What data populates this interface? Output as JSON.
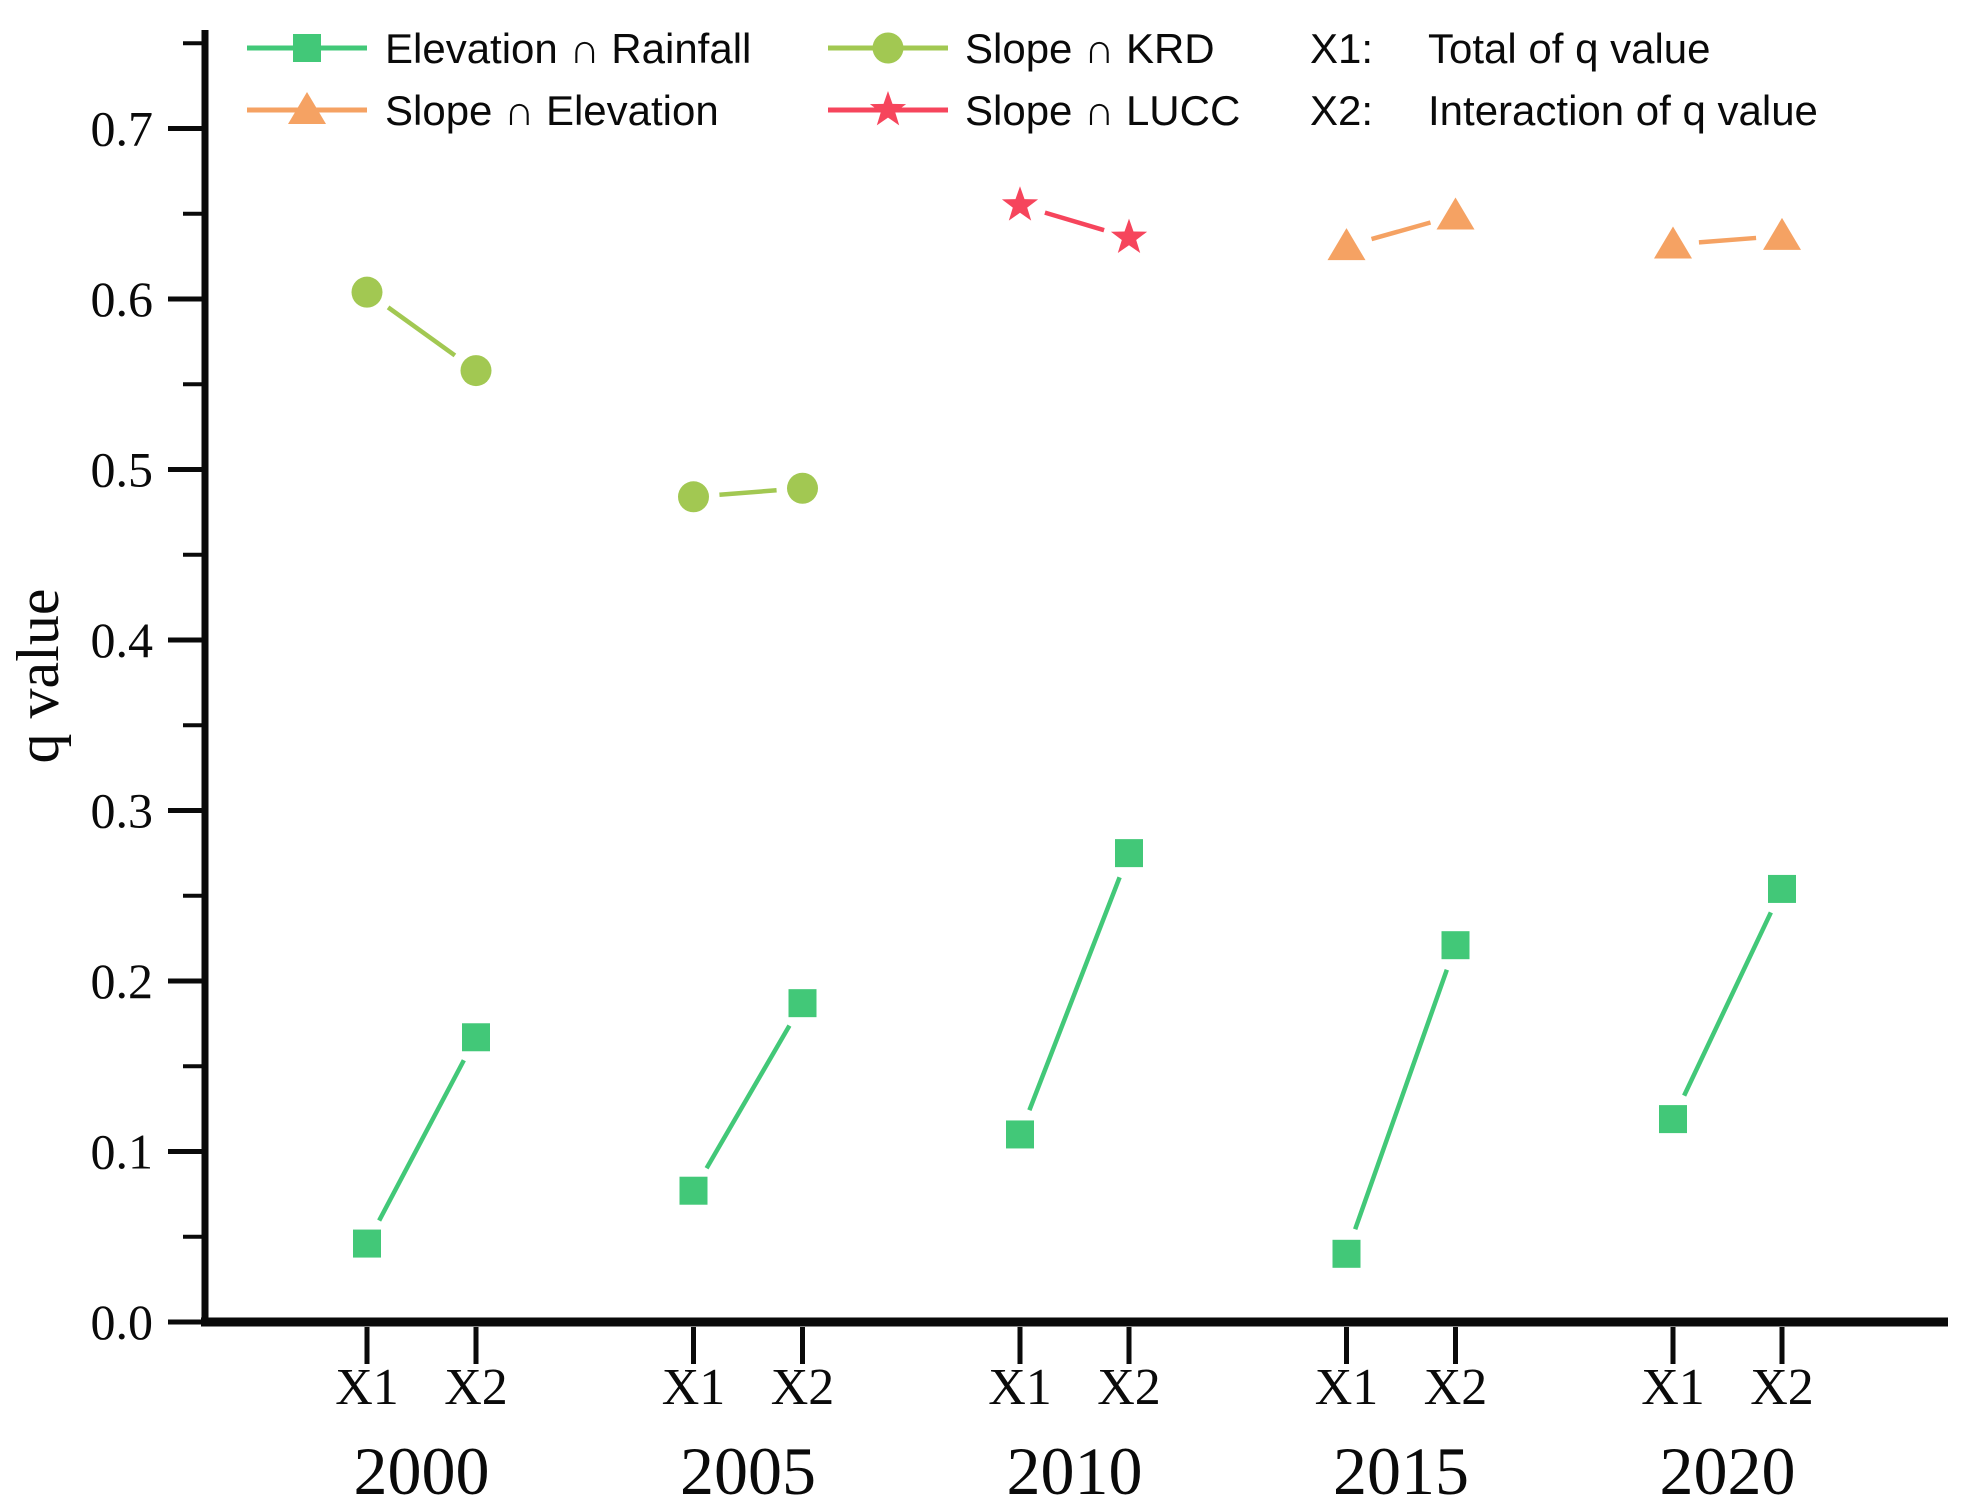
{
  "chart_data": {
    "type": "line",
    "title": "",
    "ylabel": "q value",
    "ylim": [
      0.0,
      0.75
    ],
    "grid": false,
    "legend_position": "top",
    "ytick_labels": [
      "0.0",
      "0.1",
      "0.2",
      "0.3",
      "0.4",
      "0.5",
      "0.6",
      "0.7"
    ],
    "minor_tick_step": 0.05,
    "groups": [
      "2000",
      "2005",
      "2010",
      "2015",
      "2020"
    ],
    "sub_labels": [
      "X1",
      "X2"
    ],
    "series": [
      {
        "name": "Elevation ∩ Rainfall",
        "marker": "square",
        "color": "#42c878",
        "values": [
          [
            0.046,
            0.167
          ],
          [
            0.077,
            0.187
          ],
          [
            0.11,
            0.275
          ],
          [
            0.04,
            0.221
          ],
          [
            0.119,
            0.254
          ]
        ]
      },
      {
        "name": "Slope ∩ Elevation",
        "marker": "triangle",
        "color": "#f5a263",
        "values": [
          null,
          null,
          null,
          [
            0.631,
            0.649
          ],
          [
            0.632,
            0.637
          ]
        ]
      },
      {
        "name": "Slope ∩ KRD",
        "marker": "circle",
        "color": "#a2c852",
        "values": [
          [
            0.604,
            0.558
          ],
          [
            0.484,
            0.489
          ],
          null,
          null,
          null
        ]
      },
      {
        "name": "Slope ∩ LUCC",
        "marker": "star",
        "color": "#f6455c",
        "values": [
          null,
          null,
          [
            0.655,
            0.636
          ],
          null,
          null
        ]
      }
    ],
    "legend_notes": [
      {
        "prefix": "X1:",
        "text": "Total of q value"
      },
      {
        "prefix": "X2:",
        "text": "Interaction of q value"
      }
    ]
  }
}
